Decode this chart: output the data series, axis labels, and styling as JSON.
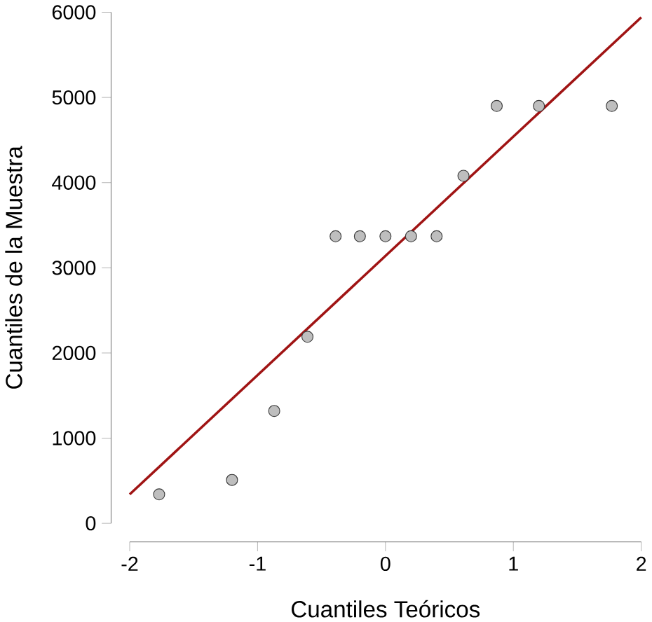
{
  "chart_data": {
    "type": "scatter",
    "xlabel": "Cuantiles Teóricos",
    "ylabel": "Cuantiles de la Muestra",
    "xlim": [
      -2,
      2
    ],
    "ylim": [
      0,
      6000
    ],
    "xticks": [
      -2,
      -1,
      0,
      1,
      2
    ],
    "yticks": [
      0,
      1000,
      2000,
      3000,
      4000,
      5000,
      6000
    ],
    "grid": false,
    "series": [
      {
        "color": "#bebebe",
        "marker": "circle",
        "x": [
          -1.77,
          -1.2,
          -0.87,
          -0.61,
          -0.39,
          -0.2,
          0,
          0.2,
          0.4,
          0.61,
          0.87,
          1.2,
          1.77
        ],
        "values": [
          340,
          510,
          1320,
          2190,
          3370,
          3370,
          3370,
          3370,
          3370,
          4080,
          4900,
          4900,
          4900
        ]
      },
      {
        "type": "line",
        "marker": "none",
        "color": "#a01414",
        "x": [
          -2,
          2
        ],
        "values": [
          340,
          5940
        ]
      }
    ]
  }
}
